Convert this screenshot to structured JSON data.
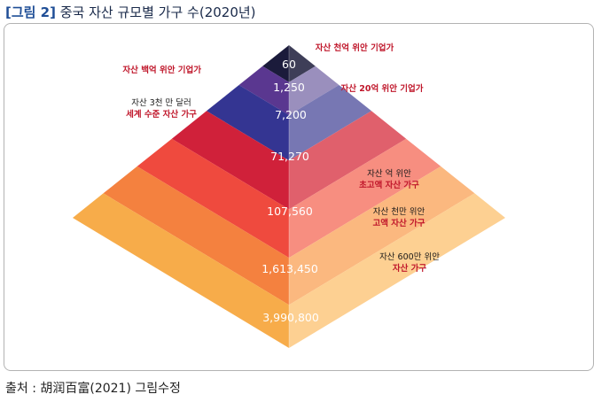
{
  "figure": {
    "number": "[그림 2]",
    "title": "중국 자산 규모별 가구 수(2020년)"
  },
  "source_note": "출처 : 胡润百富(2021) 그림수정",
  "chart_data": {
    "type": "pyramid",
    "title": "중국 자산 규모별 가구 수(2020년)",
    "unit": "가구",
    "levels": [
      {
        "value": 60,
        "value_label": "60",
        "desc": [
          "자산 천억 위안 기업가"
        ],
        "desc_side": "right",
        "color_left": "#1b1b3b",
        "color_right": "#3e3e58",
        "dark_text": false
      },
      {
        "value": 1250,
        "value_label": "1,250",
        "desc": [
          "자산 백억 위안 기업가"
        ],
        "desc_side": "left",
        "color_left": "#5a3790",
        "color_right": "#9a8fbd",
        "dark_text": false
      },
      {
        "value": 7200,
        "value_label": "7,200",
        "desc": [
          "자산 20억 위안 기업가"
        ],
        "desc_side": "right",
        "color_left": "#343592",
        "color_right": "#7777b3",
        "dark_text": false
      },
      {
        "value": 71270,
        "value_label": "71,270",
        "desc": [
          "자산 3천 만 달러",
          "세계 수준 자산 가구"
        ],
        "desc_side": "left",
        "color_left": "#d0213a",
        "color_right": "#e0606c",
        "dark_text": false
      },
      {
        "value": 107560,
        "value_label": "107,560",
        "desc": [
          "자산 억 위안",
          "초고액 자산 가구"
        ],
        "desc_side": "right",
        "color_left": "#ef4a3e",
        "color_right": "#f78e80",
        "dark_text": false
      },
      {
        "value": 1613450,
        "value_label": "1,613,450",
        "desc": [
          "자산 천만 위안",
          "고액 자산 가구"
        ],
        "desc_side": "right",
        "color_left": "#f4813f",
        "color_right": "#fbb87f",
        "dark_text": false
      },
      {
        "value": 3990800,
        "value_label": "3,990,800",
        "desc": [
          "자산 600만 위안",
          "자산 가구"
        ],
        "desc_side": "right",
        "color_left": "#f7ac4a",
        "color_right": "#fdd092",
        "dark_text": false
      }
    ]
  }
}
